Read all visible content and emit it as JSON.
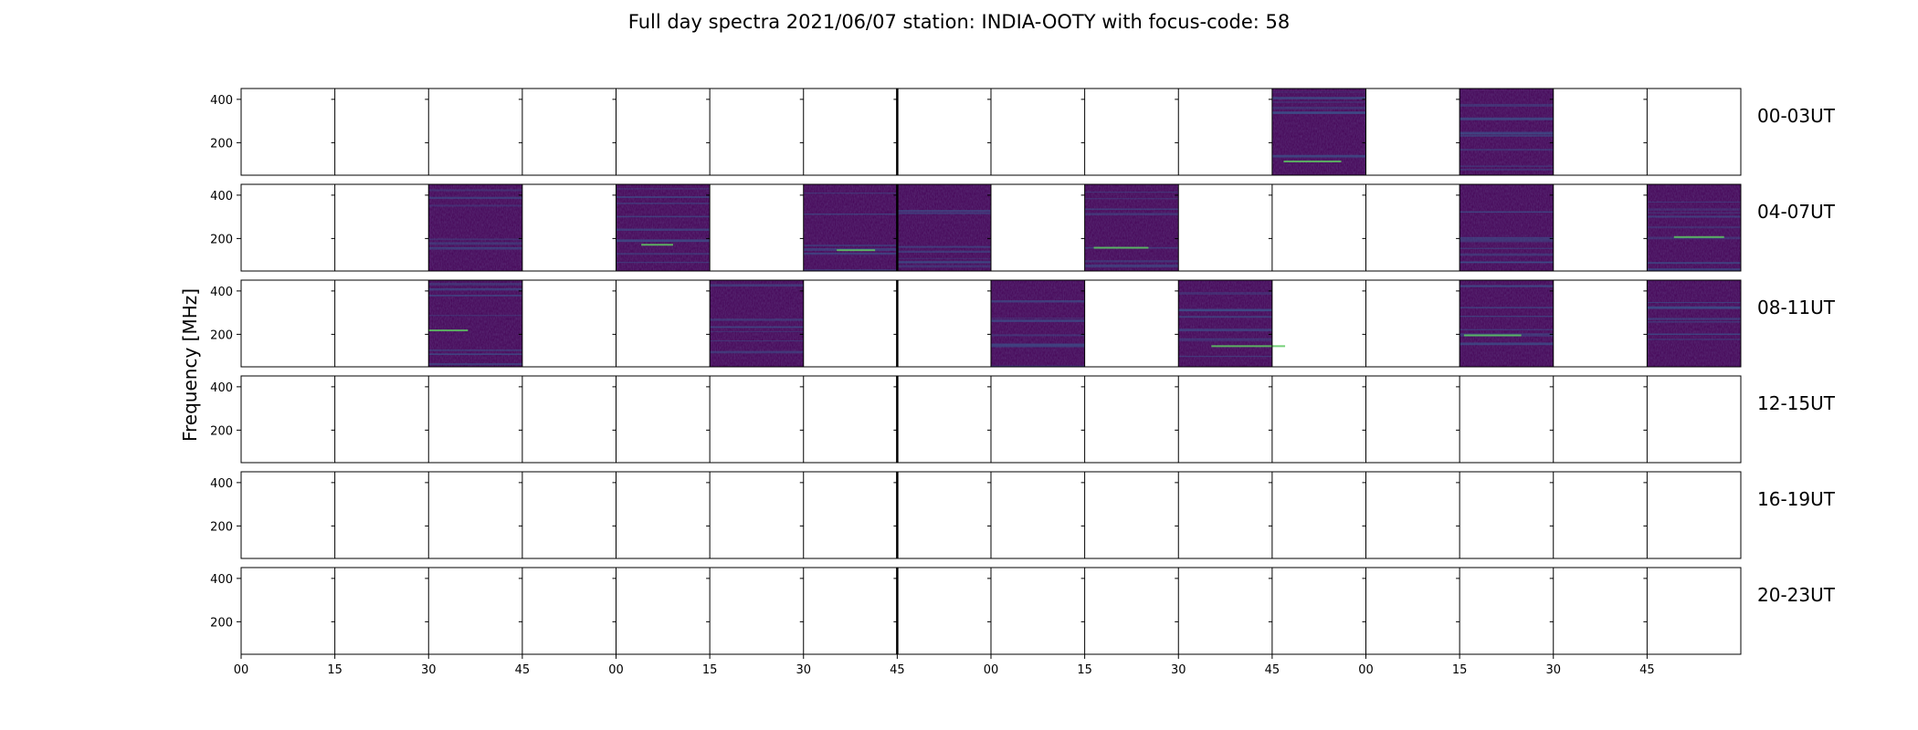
{
  "chart_data": {
    "type": "heatmap",
    "title": "Full day spectra 2021/06/07 station: INDIA-OOTY with focus-code: 58",
    "ylabel": "Frequency [MHz]",
    "xlabel": "",
    "yticks": [
      "200",
      "400"
    ],
    "xtick_labels": [
      "00",
      "15",
      "30",
      "45",
      "00",
      "15",
      "30",
      "45",
      "00",
      "15",
      "30",
      "45",
      "00",
      "15",
      "30",
      "45"
    ],
    "rows": [
      {
        "label": "00-03UT",
        "filled_panels": [
          11,
          13
        ]
      },
      {
        "label": "04-07UT",
        "filled_panels": [
          2,
          4,
          6,
          7,
          9,
          13,
          15
        ]
      },
      {
        "label": "08-11UT",
        "filled_panels": [
          2,
          5,
          8,
          10,
          13,
          15
        ]
      },
      {
        "label": "12-15UT",
        "filled_panels": []
      },
      {
        "label": "16-19UT",
        "filled_panels": []
      },
      {
        "label": "20-23UT",
        "filled_panels": []
      }
    ],
    "panels_per_row": 16,
    "colormap": "viridis",
    "colors": {
      "low": "#440154",
      "mid": "#3b528b",
      "high": "#5ec962"
    }
  }
}
